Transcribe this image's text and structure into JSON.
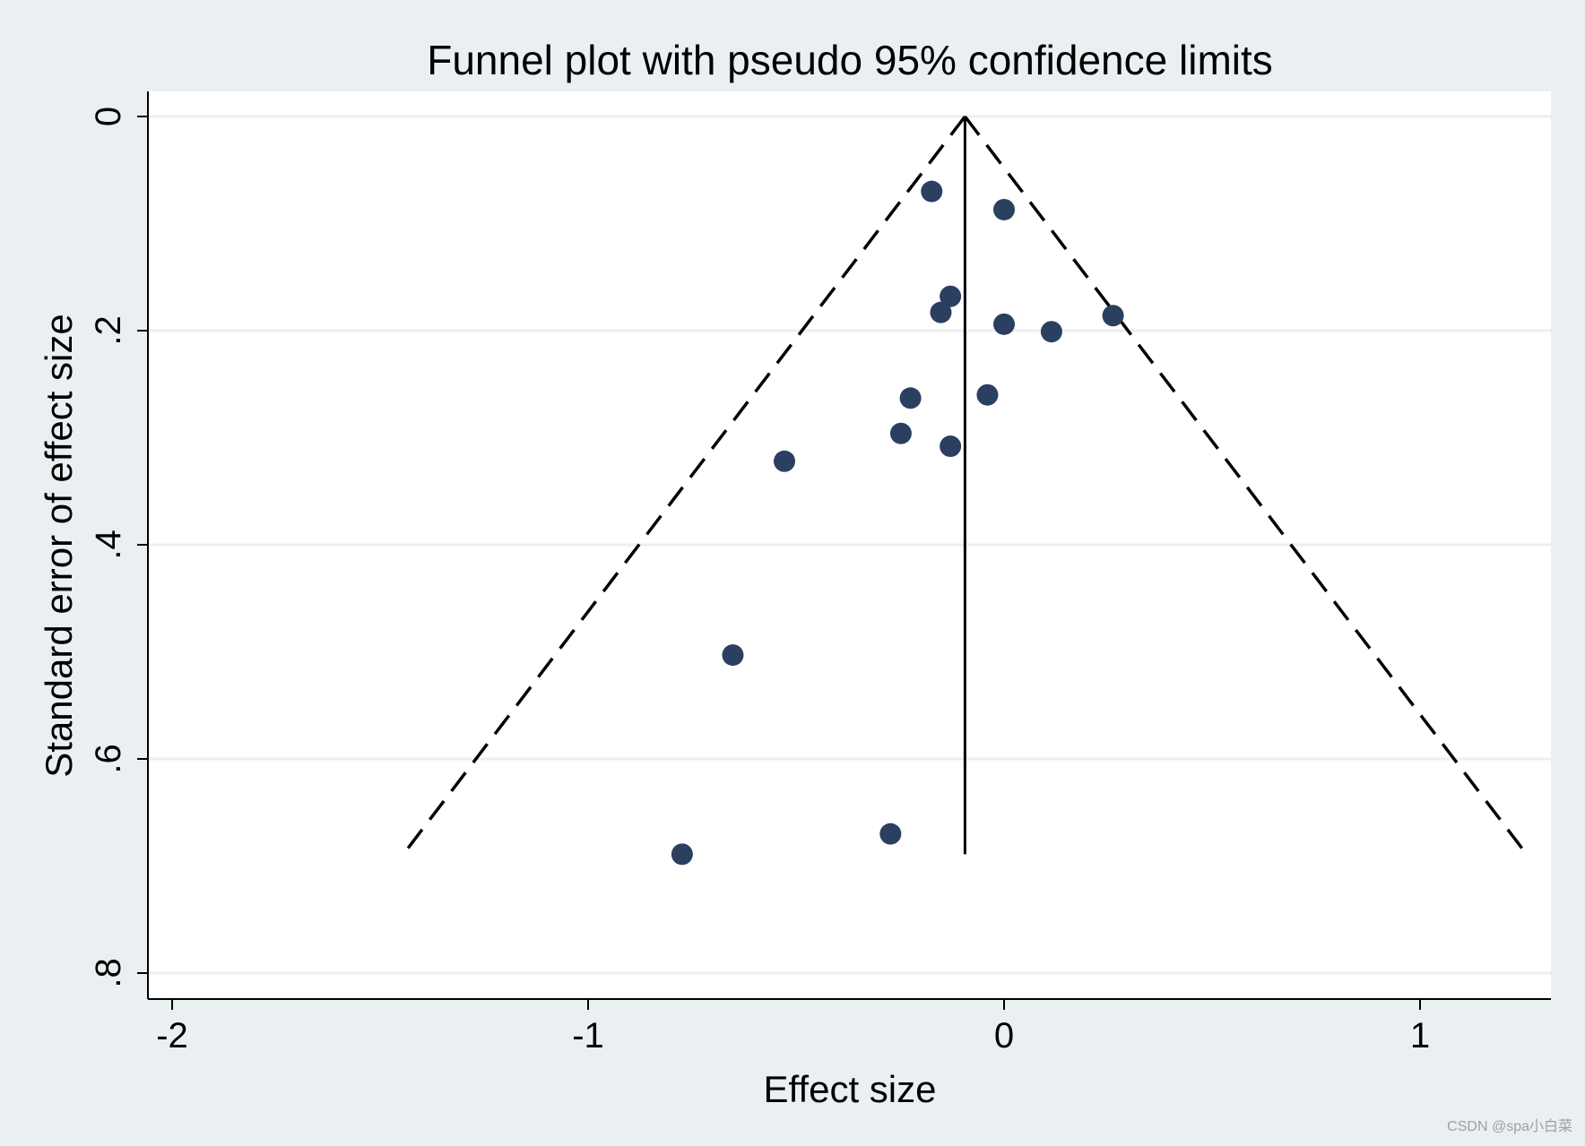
{
  "watermark": "CSDN @spa小白菜",
  "colors": {
    "background": "#eaf0f2",
    "plot_background": "#ffffff",
    "gridline": "#eaf0f2",
    "marker": "#2b3f61",
    "line": "#000000"
  },
  "chart_data": {
    "type": "scatter",
    "title": "Funnel plot with pseudo 95% confidence limits",
    "xlabel": "Effect size",
    "ylabel": "Standard error of effect size",
    "xlim": [
      -2.06,
      1.31
    ],
    "ylim": [
      0.826,
      -0.03
    ],
    "y_reversed": true,
    "grid": true,
    "xticks": [
      {
        "value": -2,
        "label": "-2"
      },
      {
        "value": -1,
        "label": "-1"
      },
      {
        "value": 0,
        "label": "0"
      },
      {
        "value": 1,
        "label": "1"
      }
    ],
    "yticks": [
      {
        "value": 0,
        "label": "0"
      },
      {
        "value": 0.2,
        "label": ".2"
      },
      {
        "value": 0.4,
        "label": ".4"
      },
      {
        "value": 0.6,
        "label": ".6"
      },
      {
        "value": 0.8,
        "label": ".8"
      }
    ],
    "pooled_effect": -0.094,
    "max_se": 0.689,
    "confidence_limits": {
      "apex": {
        "x": -0.094,
        "y": 0
      },
      "left": {
        "x": -1.444,
        "y": 0.689
      },
      "right": {
        "x": 1.256,
        "y": 0.689
      }
    },
    "points": [
      {
        "x": -0.174,
        "y": 0.07
      },
      {
        "x": 0.0,
        "y": 0.087
      },
      {
        "x": -0.129,
        "y": 0.168
      },
      {
        "x": -0.152,
        "y": 0.183
      },
      {
        "x": 0.0,
        "y": 0.194
      },
      {
        "x": 0.114,
        "y": 0.201
      },
      {
        "x": 0.262,
        "y": 0.186
      },
      {
        "x": -0.225,
        "y": 0.263
      },
      {
        "x": -0.04,
        "y": 0.26
      },
      {
        "x": -0.248,
        "y": 0.296
      },
      {
        "x": -0.129,
        "y": 0.308
      },
      {
        "x": -0.528,
        "y": 0.322
      },
      {
        "x": -0.652,
        "y": 0.503
      },
      {
        "x": -0.273,
        "y": 0.67
      },
      {
        "x": -0.774,
        "y": 0.689
      }
    ]
  }
}
